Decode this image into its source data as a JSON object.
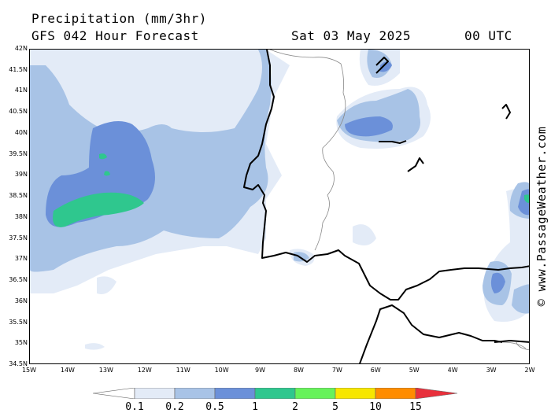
{
  "header": {
    "title": "Precipitation (mm/3hr)",
    "subtitle": "GFS 042 Hour Forecast",
    "date": "Sat 03 May 2025",
    "time": "00 UTC"
  },
  "credit": "© www.PassageWeather.com",
  "map": {
    "region": "Portugal / Gulf of Cadiz / Alboran",
    "lon_range": [
      -15,
      -2
    ],
    "lat_range": [
      34.5,
      42
    ],
    "lat_labels": [
      "42N",
      "41.5N",
      "41N",
      "40.5N",
      "40N",
      "39.5N",
      "39N",
      "38.5N",
      "38N",
      "37.5N",
      "37N",
      "36.5N",
      "36N",
      "35.5N",
      "35N",
      "34.5N"
    ],
    "lon_labels": [
      "15W",
      "14W",
      "13W",
      "12W",
      "11W",
      "10W",
      "9W",
      "8W",
      "7W",
      "6W",
      "5W",
      "4W",
      "3W",
      "2W"
    ]
  },
  "legend": {
    "labels": [
      "0.1",
      "0.2",
      "0.5",
      "1",
      "2",
      "5",
      "10",
      "15"
    ],
    "colors": [
      "#ffffff",
      "#e3ebf7",
      "#a8c3e6",
      "#6b90d9",
      "#2fc78e",
      "#66f25a",
      "#f7e600",
      "#ff8c00",
      "#e8303c"
    ]
  }
}
